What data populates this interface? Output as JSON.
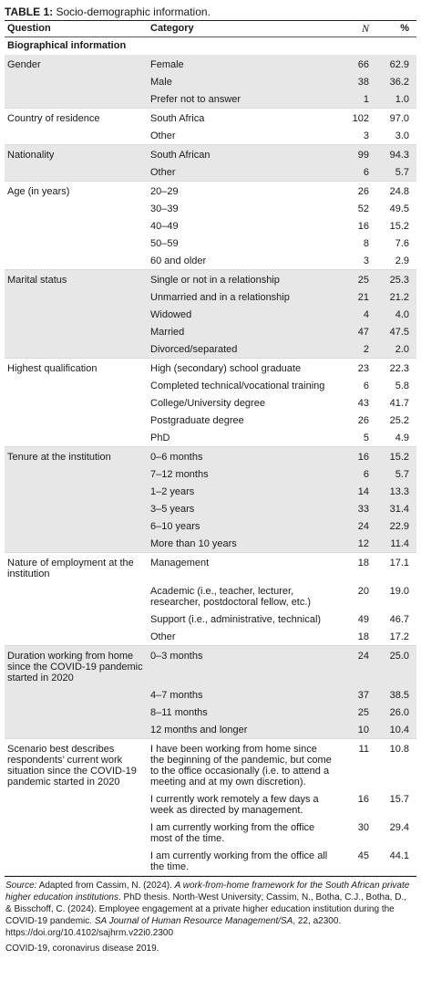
{
  "caption": {
    "label": "TABLE 1:",
    "text": "Socio-demographic information."
  },
  "columns": {
    "question": "Question",
    "category": "Category",
    "n": "N",
    "pct": "%"
  },
  "section_title": "Biographical information",
  "groups": [
    {
      "question": "Gender",
      "shaded": true,
      "rows": [
        {
          "category": "Female",
          "n": "66",
          "pct": "62.9"
        },
        {
          "category": "Male",
          "n": "38",
          "pct": "36.2"
        },
        {
          "category": "Prefer not to answer",
          "n": "1",
          "pct": "1.0"
        }
      ]
    },
    {
      "question": "Country of residence",
      "shaded": false,
      "rows": [
        {
          "category": "South Africa",
          "n": "102",
          "pct": "97.0"
        },
        {
          "category": "Other",
          "n": "3",
          "pct": "3.0"
        }
      ]
    },
    {
      "question": "Nationality",
      "shaded": true,
      "rows": [
        {
          "category": "South African",
          "n": "99",
          "pct": "94.3"
        },
        {
          "category": "Other",
          "n": "6",
          "pct": "5.7"
        }
      ]
    },
    {
      "question": "Age (in years)",
      "shaded": false,
      "rows": [
        {
          "category": "20–29",
          "n": "26",
          "pct": "24.8"
        },
        {
          "category": "30–39",
          "n": "52",
          "pct": "49.5"
        },
        {
          "category": "40–49",
          "n": "16",
          "pct": "15.2"
        },
        {
          "category": "50–59",
          "n": "8",
          "pct": "7.6"
        },
        {
          "category": "60 and older",
          "n": "3",
          "pct": "2.9"
        }
      ]
    },
    {
      "question": "Marital status",
      "shaded": true,
      "rows": [
        {
          "category": "Single or not in a relationship",
          "n": "25",
          "pct": "25.3"
        },
        {
          "category": "Unmarried and in a relationship",
          "n": "21",
          "pct": "21.2"
        },
        {
          "category": "Widowed",
          "n": "4",
          "pct": "4.0"
        },
        {
          "category": "Married",
          "n": "47",
          "pct": "47.5"
        },
        {
          "category": "Divorced/separated",
          "n": "2",
          "pct": "2.0"
        }
      ]
    },
    {
      "question": "Highest qualification",
      "shaded": false,
      "rows": [
        {
          "category": "High (secondary) school graduate",
          "n": "23",
          "pct": "22.3"
        },
        {
          "category": "Completed technical/vocational training",
          "n": "6",
          "pct": "5.8"
        },
        {
          "category": "College/University degree",
          "n": "43",
          "pct": "41.7"
        },
        {
          "category": "Postgraduate degree",
          "n": "26",
          "pct": "25.2"
        },
        {
          "category": "PhD",
          "n": "5",
          "pct": "4.9"
        }
      ]
    },
    {
      "question": "Tenure at the institution",
      "shaded": true,
      "rows": [
        {
          "category": "0–6 months",
          "n": "16",
          "pct": "15.2"
        },
        {
          "category": "7–12 months",
          "n": "6",
          "pct": "5.7"
        },
        {
          "category": "1–2 years",
          "n": "14",
          "pct": "13.3"
        },
        {
          "category": "3–5 years",
          "n": "33",
          "pct": "31.4"
        },
        {
          "category": "6–10 years",
          "n": "24",
          "pct": "22.9"
        },
        {
          "category": "More than 10 years",
          "n": "12",
          "pct": "11.4"
        }
      ]
    },
    {
      "question": "Nature of employment at the institution",
      "shaded": false,
      "rows": [
        {
          "category": "Management",
          "n": "18",
          "pct": "17.1"
        },
        {
          "category": "Academic (i.e., teacher, lecturer, researcher, postdoctoral fellow, etc.)",
          "n": "20",
          "pct": "19.0"
        },
        {
          "category": "Support (i.e., administrative, technical)",
          "n": "49",
          "pct": "46.7"
        },
        {
          "category": "Other",
          "n": "18",
          "pct": "17.2"
        }
      ]
    },
    {
      "question": "Duration working from home since the COVID-19 pandemic started in 2020",
      "shaded": true,
      "rows": [
        {
          "category": "0–3 months",
          "n": "24",
          "pct": "25.0"
        },
        {
          "category": "4–7 months",
          "n": "37",
          "pct": "38.5"
        },
        {
          "category": "8–11 months",
          "n": "25",
          "pct": "26.0"
        },
        {
          "category": "12 months and longer",
          "n": "10",
          "pct": "10.4"
        }
      ]
    },
    {
      "question": "Scenario best describes respondents’ current work situation since the COVID-19 pandemic started in 2020",
      "shaded": false,
      "rows": [
        {
          "category": "I have been working from home since the beginning of the pandemic, but come to the office occasionally (i.e. to attend a meeting and at my own discretion).",
          "n": "11",
          "pct": "10.8"
        },
        {
          "category": "I currently work remotely a few days a week as directed by management.",
          "n": "16",
          "pct": "15.7"
        },
        {
          "category": "I am currently working from the office most of the time.",
          "n": "30",
          "pct": "29.4"
        },
        {
          "category": "I am currently working from the office all the time.",
          "n": "45",
          "pct": "44.1"
        }
      ]
    }
  ],
  "source": {
    "label": "Source:",
    "part1": "Adapted from Cassim, N. (2024). ",
    "title1": "A work-from-home framework for the South African private higher education institutions",
    "part2": ". PhD thesis. North-West University; Cassim, N., Botha, C.J., Botha, D., & Bisschoff, C. (2024). Employee engagement at a private higher education institution during the COVID-19 pandemic. ",
    "journal": "SA Journal of Human Resource Management/SA",
    "part3": ", 22, a2300. https://doi.org/10.4102/sajhrm.v22i0.2300"
  },
  "abbreviation": "COVID-19, coronavirus disease 2019."
}
